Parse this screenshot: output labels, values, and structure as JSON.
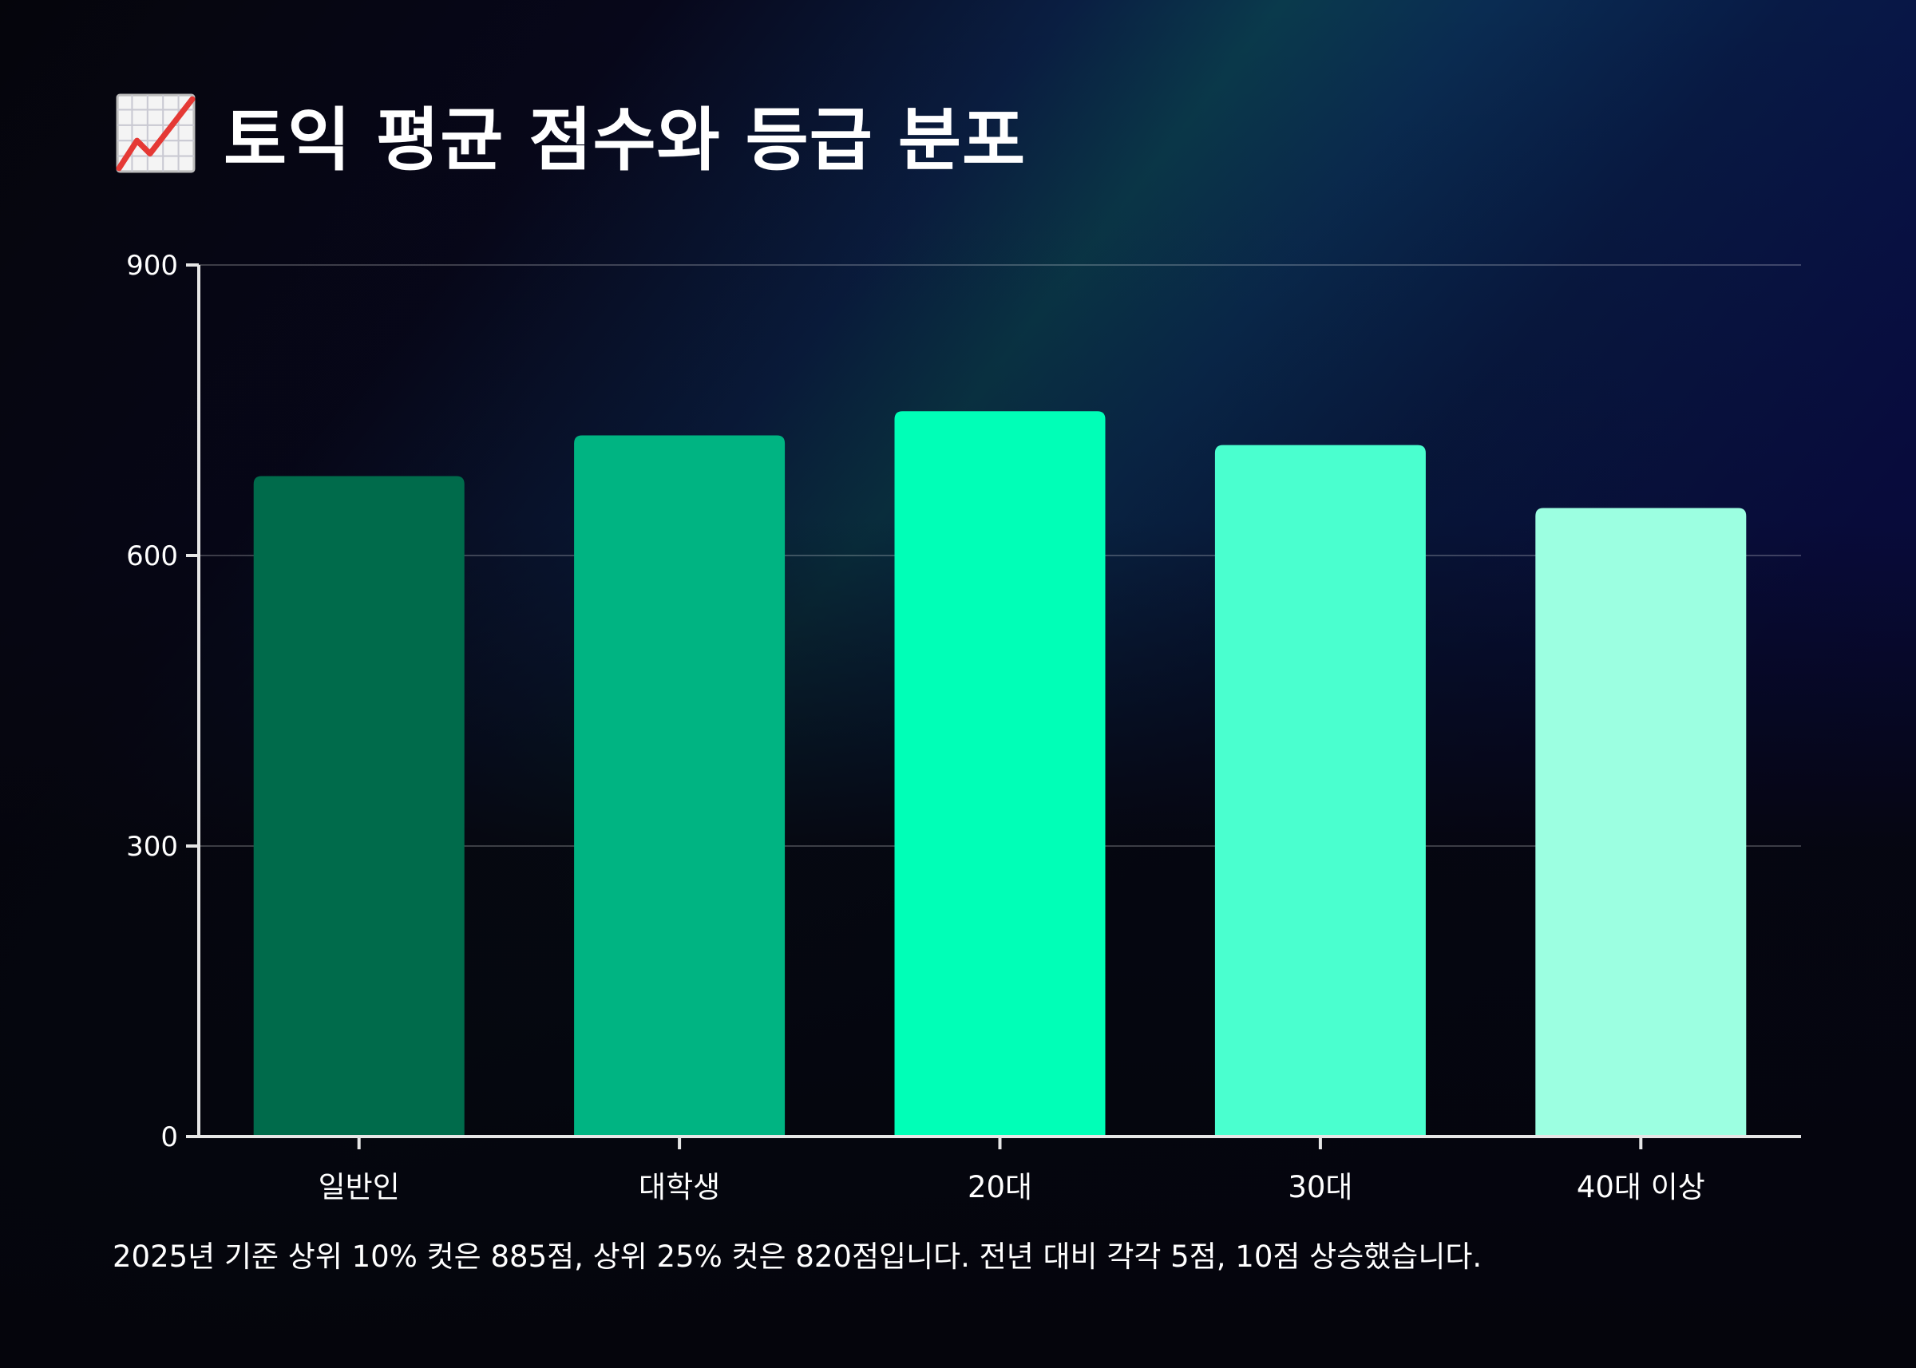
{
  "header": {
    "title": "토익 평균 점수와 등급 분포",
    "icon": "chart-increasing-icon"
  },
  "chart_data": {
    "type": "bar",
    "categories": [
      "일반인",
      "대학생",
      "20대",
      "30대",
      "40대 이상"
    ],
    "values": [
      682,
      724,
      749,
      714,
      649
    ],
    "colors": [
      "#006b4b",
      "#00b482",
      "#00ffb7",
      "#4affcf",
      "#9cffe1"
    ],
    "ylim": [
      0,
      900
    ],
    "yticks": [
      0,
      300,
      600,
      900
    ],
    "ytick_labels": [
      "0",
      "300",
      "600",
      "900"
    ],
    "grid": true,
    "legend": "none",
    "title": "",
    "xlabel": "",
    "ylabel": ""
  },
  "footnote": "2025년 기준 상위 10% 컷은 885점, 상위 25% 컷은 820점입니다. 전년 대비 각각 5점, 10점 상승했습니다."
}
